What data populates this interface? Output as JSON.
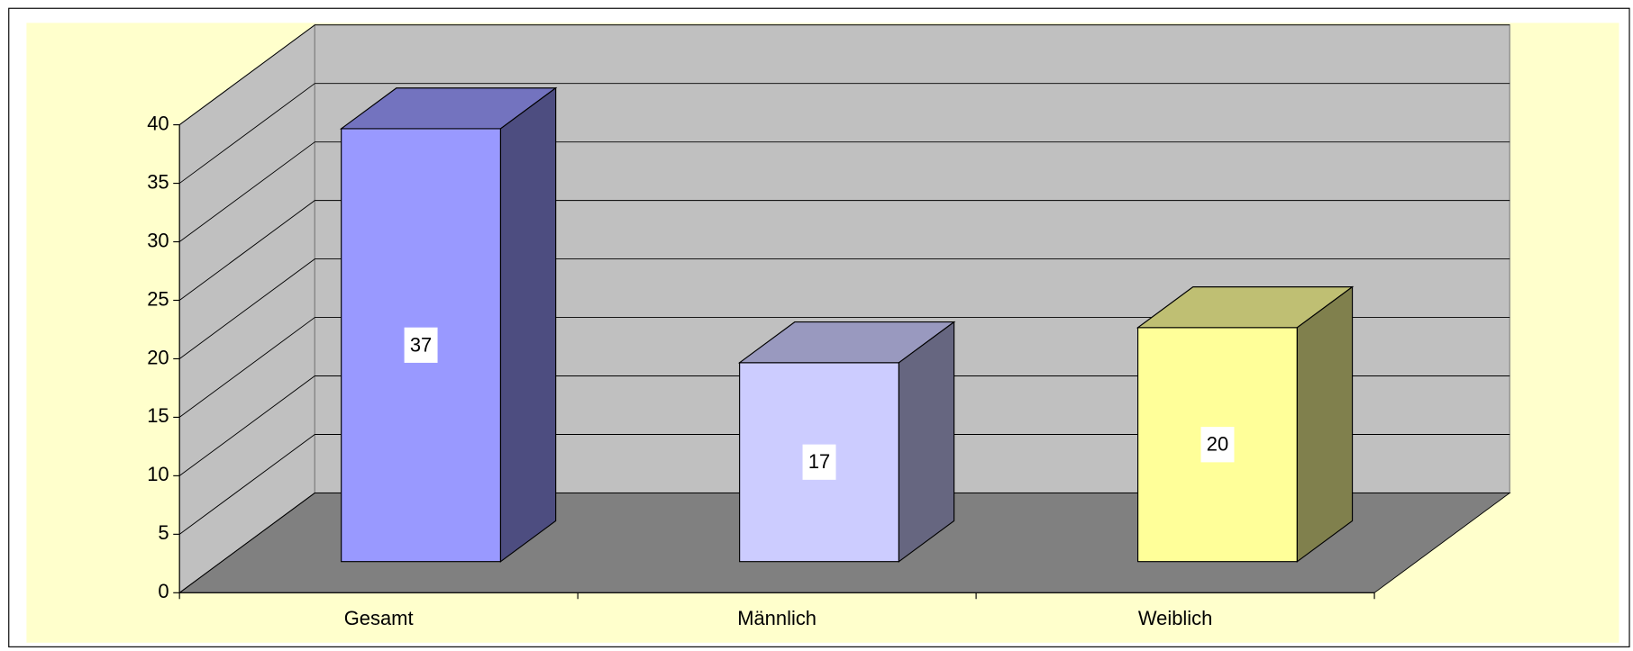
{
  "chart_data": {
    "type": "bar",
    "categories": [
      "Gesamt",
      "Männlich",
      "Weiblich"
    ],
    "values": [
      37,
      17,
      20
    ],
    "colors": [
      "#9999ff",
      "#ccccff",
      "#ffff99"
    ],
    "ylim": [
      0,
      40
    ],
    "yticks": [
      0,
      5,
      10,
      15,
      20,
      25,
      30,
      35,
      40
    ],
    "grid": true
  }
}
